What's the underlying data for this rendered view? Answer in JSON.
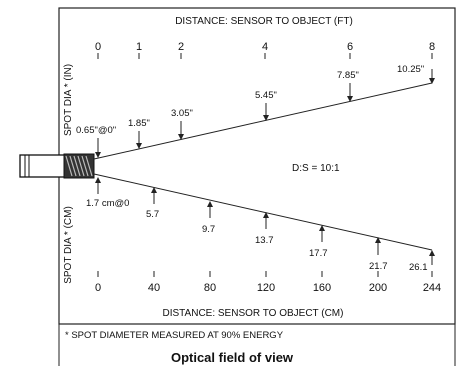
{
  "top_axis": {
    "title": "DISTANCE: SENSOR TO OBJECT (FT)",
    "ticks": [
      "0",
      "1",
      "2",
      "4",
      "6",
      "8"
    ]
  },
  "bottom_axis": {
    "title": "DISTANCE: SENSOR TO OBJECT (CM)",
    "ticks": [
      "0",
      "40",
      "80",
      "120",
      "160",
      "200",
      "244"
    ]
  },
  "left_axis_top_label": "SPOT DIA * (IN)",
  "left_axis_bottom_label": "SPOT DIA * (CM)",
  "inch_callouts": [
    "0.65\"@0\"",
    "1.85\"",
    "3.05\"",
    "5.45\"",
    "7.85\"",
    "10.25\""
  ],
  "cm_callouts": [
    "1.7 cm@0",
    "5.7",
    "9.7",
    "13.7",
    "17.7",
    "21.7",
    "26.1"
  ],
  "ratio_label": "D:S = 10:1",
  "footnote": "* SPOT DIAMETER MEASURED AT 90% ENERGY",
  "caption": "Optical field of view"
}
